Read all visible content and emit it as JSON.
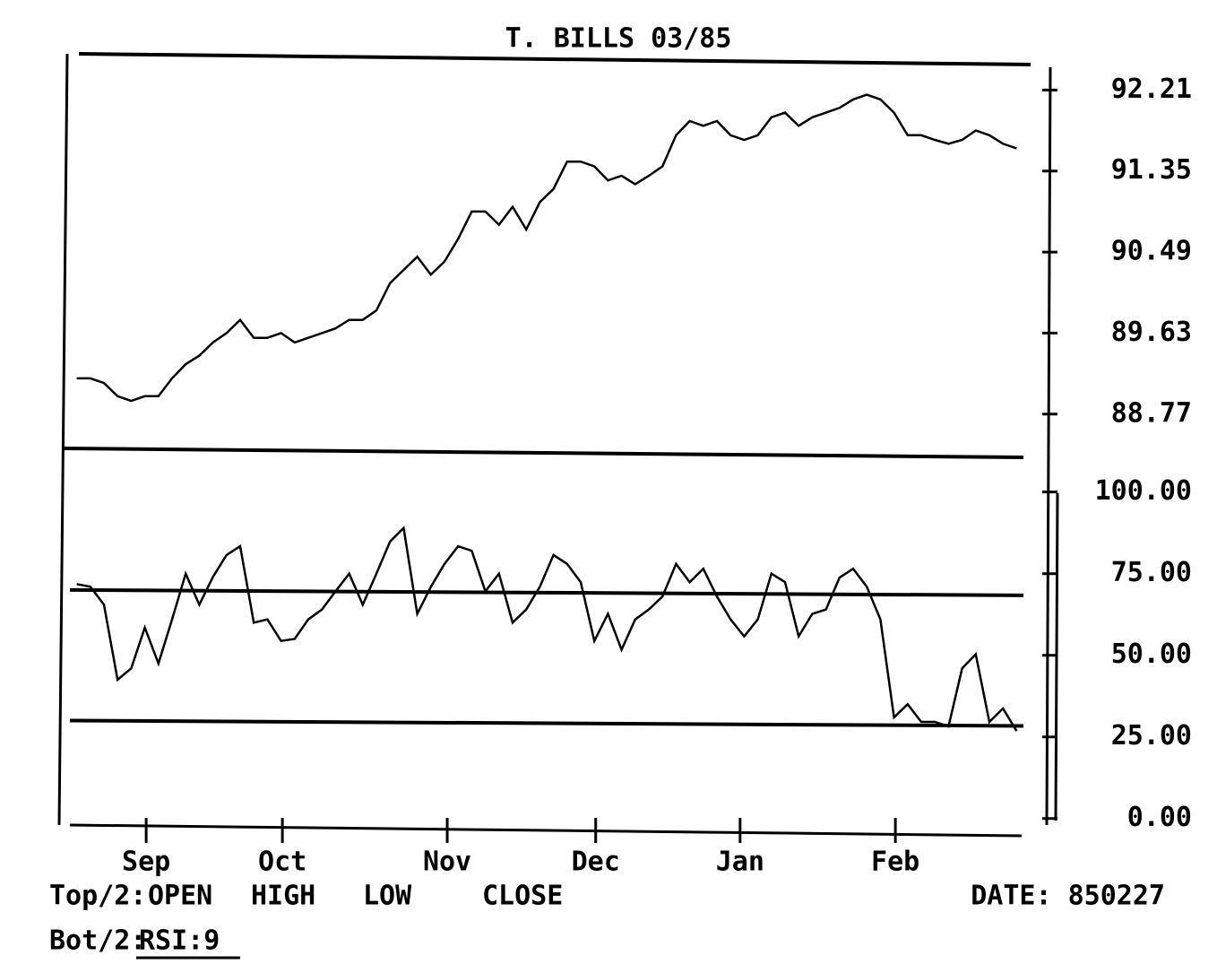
{
  "chart_data": [
    {
      "type": "line",
      "title": "T. BILLS   03/85",
      "color": "#000000",
      "xlim": [
        -0.5,
        69.5
      ],
      "ylim": [
        88.33,
        92.48
      ],
      "yticks": [
        92.21,
        91.35,
        90.49,
        89.63,
        88.77
      ],
      "values": [
        89.15,
        89.15,
        89.1,
        88.96,
        88.91,
        88.96,
        88.96,
        89.15,
        89.3,
        89.39,
        89.53,
        89.63,
        89.77,
        89.58,
        89.58,
        89.63,
        89.53,
        89.58,
        89.63,
        89.68,
        89.77,
        89.77,
        89.87,
        90.16,
        90.3,
        90.44,
        90.25,
        90.39,
        90.63,
        90.92,
        90.92,
        90.78,
        90.97,
        90.73,
        91.02,
        91.16,
        91.45,
        91.45,
        91.4,
        91.25,
        91.3,
        91.21,
        91.3,
        91.4,
        91.73,
        91.88,
        91.83,
        91.88,
        91.73,
        91.68,
        91.73,
        91.92,
        91.97,
        91.83,
        91.92,
        91.97,
        92.02,
        92.11,
        92.16,
        92.11,
        91.97,
        91.73,
        91.73,
        91.68,
        91.64,
        91.68,
        91.78,
        91.73,
        91.64,
        91.59
      ]
    },
    {
      "type": "line",
      "color": "#000000",
      "xlim": [
        -0.5,
        69.5
      ],
      "ylim": [
        -2,
        112
      ],
      "xticks": [
        {
          "value": 5.1,
          "label": "Sep"
        },
        {
          "value": 15.1,
          "label": "Oct"
        },
        {
          "value": 27.2,
          "label": "Nov"
        },
        {
          "value": 38.1,
          "label": "Dec"
        },
        {
          "value": 48.7,
          "label": "Jan"
        },
        {
          "value": 60.1,
          "label": "Feb"
        }
      ],
      "yticks": [
        {
          "value": 100,
          "label": "100.00"
        },
        {
          "value": 75,
          "label": "75.00"
        },
        {
          "value": 50,
          "label": "50.00"
        },
        {
          "value": 25,
          "label": "25.00"
        },
        {
          "value": 0,
          "label": "0.00"
        }
      ],
      "hlines": [
        70,
        30
      ],
      "values": [
        71.8,
        71.0,
        65.5,
        42.5,
        46.0,
        58.5,
        47.5,
        61.0,
        75.0,
        65.5,
        74.0,
        80.7,
        83.4,
        60.0,
        61.0,
        54.4,
        55.0,
        61.0,
        64.0,
        69.6,
        75.0,
        65.5,
        75.0,
        84.8,
        89.0,
        62.7,
        71.0,
        78.0,
        83.4,
        82.0,
        69.6,
        75.0,
        60.0,
        64.0,
        71.0,
        80.7,
        78.0,
        72.4,
        54.4,
        62.7,
        51.7,
        61.0,
        64.0,
        68.0,
        78.0,
        72.4,
        76.5,
        68.0,
        61.0,
        55.8,
        61.0,
        75.0,
        72.4,
        55.8,
        62.7,
        64.0,
        73.8,
        76.5,
        71.0,
        61.0,
        31.0,
        35.0,
        29.6,
        29.6,
        28.2,
        46.0,
        50.3,
        29.6,
        33.7,
        26.8
      ]
    }
  ],
  "footer": {
    "top_prefix": "Top/2:",
    "top_fields": [
      "OPEN",
      "HIGH",
      "LOW",
      "CLOSE"
    ],
    "bottom_prefix": "Bot/2:",
    "bottom_field": "RSI:9",
    "date": "DATE: 850227"
  }
}
